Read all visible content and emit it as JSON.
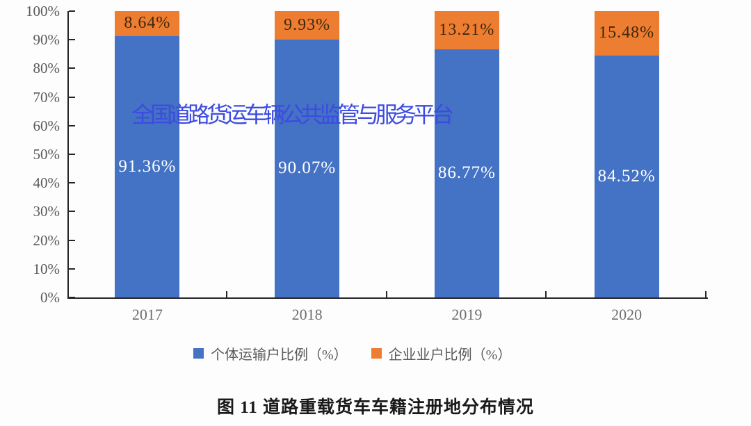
{
  "watermark": {
    "text": "全国道路货运车辆公共监管与服务平台",
    "color": "#3c4be0"
  },
  "chart_data": {
    "type": "bar",
    "variant": "stacked-100-percent",
    "title": "图 11 道路重载货车车籍注册地分布情况",
    "categories": [
      "2017",
      "2018",
      "2019",
      "2020"
    ],
    "series": [
      {
        "name": "个体运输户比例（%）",
        "color": "#4472C4",
        "label_color": "#ffffff",
        "values": [
          91.36,
          90.07,
          86.77,
          84.52
        ],
        "labels": [
          "91.36%",
          "90.07%",
          "86.77%",
          "84.52%"
        ]
      },
      {
        "name": "企业业户比例（%）",
        "color": "#ED7D31",
        "label_color": "#40280e",
        "values": [
          8.64,
          9.93,
          13.21,
          15.48
        ],
        "labels": [
          "8.64%",
          "9.93%",
          "13.21%",
          "15.48%"
        ]
      }
    ],
    "y_ticks": [
      "0%",
      "10%",
      "20%",
      "30%",
      "40%",
      "50%",
      "60%",
      "70%",
      "80%",
      "90%",
      "100%"
    ],
    "ylim": [
      0,
      100
    ],
    "grid": false,
    "legend_position": "bottom",
    "axis_color": "#262626",
    "y_tick_label_color": "#595959",
    "x_tick_label_color": "#6e6e6e"
  }
}
